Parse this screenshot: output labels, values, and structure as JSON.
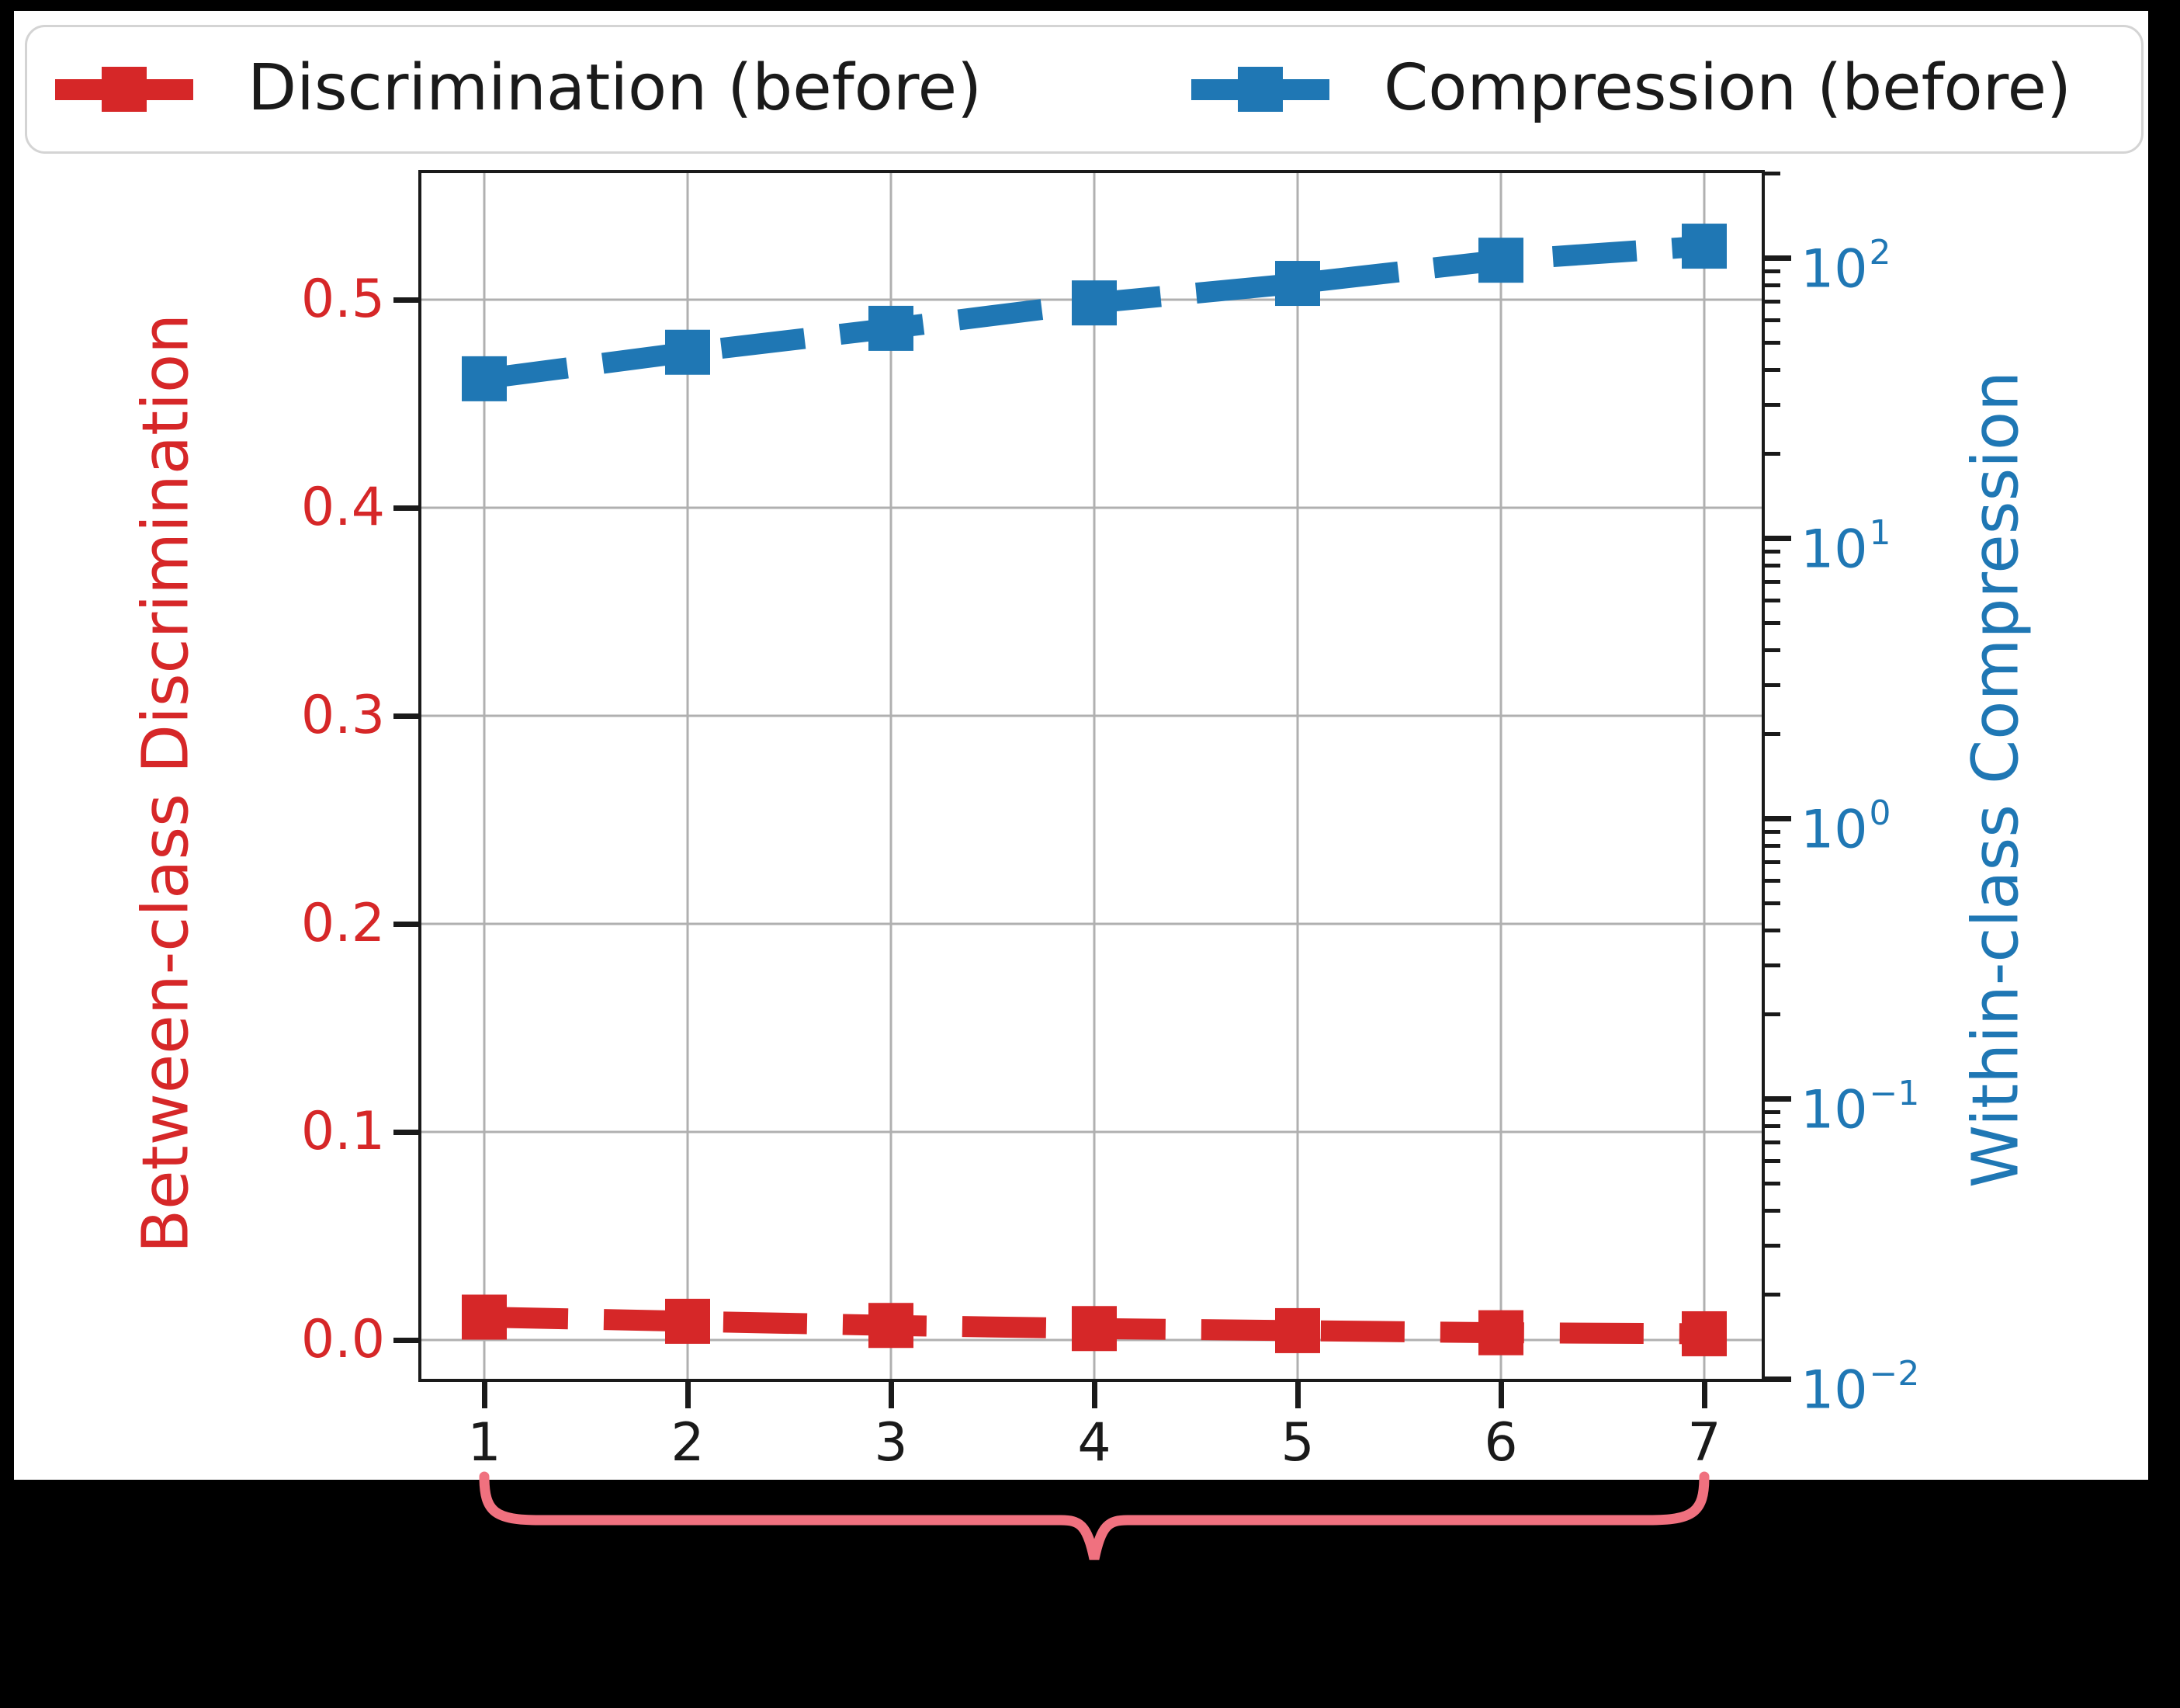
{
  "colors": {
    "discrimination": "#d62728",
    "compression": "#1f77b4",
    "grid": "#b0b0b0",
    "spine": "#1a1a1a",
    "brace": "#f0717f",
    "figure_background": "#ffffff",
    "page_background": "#000000"
  },
  "legend": {
    "items": [
      {
        "label": "Discrimination (before)",
        "color": "#d62728"
      },
      {
        "label": "Compression (before)",
        "color": "#1f77b4"
      }
    ]
  },
  "chart_data": {
    "type": "line",
    "x": [
      1,
      2,
      3,
      4,
      5,
      6,
      7
    ],
    "series": [
      {
        "name": "Discrimination (before)",
        "axis": "left",
        "color": "#d62728",
        "linestyle": "dashed",
        "marker": "square",
        "values": [
          0.011,
          0.009,
          0.007,
          0.0055,
          0.0045,
          0.0035,
          0.003
        ]
      },
      {
        "name": "Compression (before)",
        "axis": "right",
        "color": "#1f77b4",
        "linestyle": "dashed",
        "marker": "square",
        "values": [
          37,
          46,
          56,
          69,
          81,
          98,
          110
        ]
      }
    ],
    "x_axis": {
      "ticks": [
        1,
        2,
        3,
        4,
        5,
        6,
        7
      ],
      "tick_labels": [
        "1",
        "2",
        "3",
        "4",
        "5",
        "6",
        "7"
      ],
      "xlim": [
        0.69,
        7.28
      ]
    },
    "left_axis": {
      "label": "Between-class Discrimination",
      "color": "#d62728",
      "scale": "linear",
      "ticks": [
        0.0,
        0.1,
        0.2,
        0.3,
        0.4,
        0.5
      ],
      "tick_labels": [
        "0.0",
        "0.1",
        "0.2",
        "0.3",
        "0.4",
        "0.5"
      ],
      "ylim": [
        -0.019,
        0.561
      ]
    },
    "right_axis": {
      "label": "Within-class Compression",
      "color": "#1f77b4",
      "scale": "log",
      "tick_exponents": [
        2,
        1,
        0,
        -1,
        -2
      ],
      "ylim": [
        0.01,
        200
      ]
    },
    "grid": true,
    "legend_position": "top",
    "annotation": {
      "type": "curly-brace-below-xaxis",
      "span_x": [
        1,
        7
      ],
      "color": "#f0717f"
    }
  }
}
